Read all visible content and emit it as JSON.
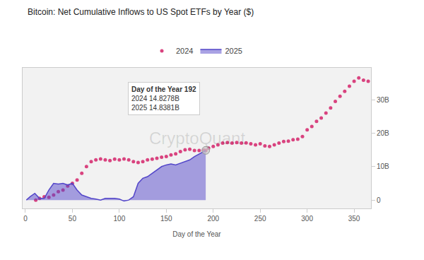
{
  "chart_data": {
    "type": "line",
    "title": "Bitcoin: Net Cumulative Inflows to US Spot ETFs by Year ($)",
    "x_title": "Day of the Year",
    "watermark": "CryptoQuant",
    "tooltip": {
      "title": "Day of the Year 192",
      "lines": [
        "2024 14.8278B",
        "2025 14.8381B"
      ]
    },
    "legend": "top",
    "grid": false,
    "xlim": [
      -3,
      368
    ],
    "xticks": [
      0,
      50,
      100,
      150,
      200,
      250,
      300,
      350
    ],
    "ylim": [
      -2.5,
      39.5
    ],
    "yticks": [
      0,
      {
        "value": 10,
        "label": "10B"
      },
      {
        "value": 20,
        "label": "20B"
      },
      {
        "value": 30,
        "label": "30B"
      }
    ],
    "series": [
      {
        "name": "2024",
        "type": "scatter",
        "marker": "circle",
        "color": "#d9437f",
        "x": [
          11,
          15,
          20,
          25,
          30,
          35,
          40,
          45,
          50,
          55,
          60,
          65,
          70,
          75,
          80,
          85,
          90,
          95,
          100,
          105,
          110,
          115,
          120,
          125,
          130,
          135,
          140,
          145,
          150,
          155,
          160,
          165,
          170,
          175,
          180,
          185,
          190,
          192,
          195,
          200,
          205,
          210,
          215,
          220,
          225,
          230,
          235,
          240,
          245,
          250,
          255,
          260,
          265,
          270,
          275,
          280,
          285,
          290,
          295,
          300,
          305,
          310,
          315,
          320,
          325,
          330,
          335,
          340,
          345,
          350,
          355,
          360,
          365
        ],
        "values": [
          0.0,
          0.5,
          1.0,
          0.8,
          1.5,
          2.5,
          3.0,
          4.2,
          5.0,
          6.0,
          8.0,
          10.0,
          11.5,
          12.0,
          12.3,
          12.0,
          11.8,
          12.2,
          12.0,
          12.3,
          12.0,
          11.5,
          11.2,
          11.5,
          12.0,
          12.2,
          12.5,
          12.8,
          13.0,
          13.5,
          13.8,
          14.5,
          15.0,
          15.2,
          14.8,
          14.8,
          14.9,
          14.8278,
          15.5,
          16.0,
          16.5,
          17.0,
          17.2,
          17.0,
          17.2,
          17.0,
          17.1,
          16.8,
          16.5,
          16.8,
          16.2,
          16.0,
          16.5,
          17.0,
          17.5,
          17.6,
          18.0,
          18.2,
          19.0,
          21.0,
          22.0,
          23.5,
          24.5,
          26.0,
          27.5,
          29.5,
          31.0,
          32.5,
          34.0,
          35.5,
          36.5,
          35.8,
          35.5
        ]
      },
      {
        "name": "2025",
        "type": "area",
        "color": "#5346c9",
        "x": [
          1,
          5,
          10,
          15,
          20,
          25,
          30,
          35,
          40,
          45,
          50,
          55,
          60,
          65,
          70,
          75,
          80,
          85,
          90,
          95,
          100,
          105,
          110,
          115,
          120,
          125,
          130,
          135,
          140,
          145,
          150,
          155,
          160,
          165,
          170,
          175,
          180,
          185,
          190,
          192
        ],
        "values": [
          0.0,
          1.0,
          2.0,
          0.5,
          0.5,
          3.0,
          5.0,
          4.8,
          5.0,
          4.5,
          5.0,
          3.0,
          1.5,
          1.0,
          0.5,
          0.3,
          0.0,
          0.5,
          0.5,
          0.5,
          0.3,
          -0.3,
          0.0,
          1.0,
          5.0,
          6.5,
          7.0,
          8.0,
          9.0,
          10.0,
          10.5,
          10.8,
          10.5,
          11.0,
          11.5,
          12.0,
          13.0,
          13.8,
          14.5,
          14.8381
        ]
      }
    ]
  }
}
